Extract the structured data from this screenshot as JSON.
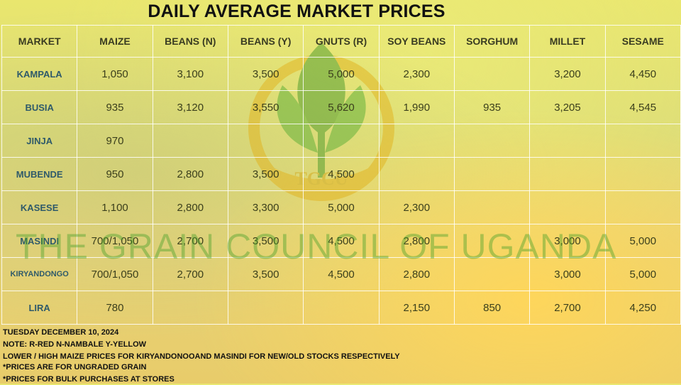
{
  "title": "DAILY AVERAGE MARKET PRICES",
  "watermark": {
    "text": "THE GRAIN COUNCIL OF UGANDA",
    "logo_text": "TGCU"
  },
  "table": {
    "headers": [
      "MARKET",
      "MAIZE",
      "BEANS (N)",
      "BEANS (Y)",
      "GNUTS (R)",
      "SOY BEANS",
      "SORGHUM",
      "MILLET",
      "SESAME"
    ],
    "rows": [
      [
        "KAMPALA",
        "1,050",
        "3,100",
        "3,500",
        "5,000",
        "2,300",
        "",
        "3,200",
        "4,450"
      ],
      [
        "BUSIA",
        "935",
        "3,120",
        "3,550",
        "5,620",
        "1,990",
        "935",
        "3,205",
        "4,545"
      ],
      [
        "JINJA",
        "970",
        "",
        "",
        "",
        "",
        "",
        "",
        ""
      ],
      [
        "MUBENDE",
        "950",
        "2,800",
        "3,500",
        "4,500",
        "",
        "",
        "",
        ""
      ],
      [
        "KASESE",
        "1,100",
        "2,800",
        "3,300",
        "5,000",
        "2,300",
        "",
        "",
        ""
      ],
      [
        "MASINDI",
        "700/1,050",
        "2,700",
        "3,500",
        "4,500",
        "2,800",
        "",
        "3,000",
        "5,000"
      ],
      [
        "KIRYANDONGO",
        "700/1,050",
        "2,700",
        "3,500",
        "4,500",
        "2,800",
        "",
        "3,000",
        "5,000"
      ],
      [
        "LIRA",
        "780",
        "",
        "",
        "",
        "2,150",
        "850",
        "2,700",
        "4,250"
      ]
    ]
  },
  "notes": {
    "date": "TUESDAY DECEMBER 10, 2024",
    "legend": "NOTE: R-RED N-NAMBALE Y-YELLOW",
    "maize_note": "LOWER / HIGH MAIZE  PRICES FOR KIRYANDONOOAND MASINDI  FOR NEW/OLD  STOCKS RESPECTIVELY",
    "ungraded": "*PRICES ARE FOR UNGRADED GRAIN",
    "bulk": "*PRICES FOR BULK PURCHASES AT STORES"
  },
  "colors": {
    "background_yellow": "#e6dc72",
    "logo_green": "#4a9a2a",
    "logo_gold": "#e2b21c",
    "market_text": "#2f5a6a"
  }
}
